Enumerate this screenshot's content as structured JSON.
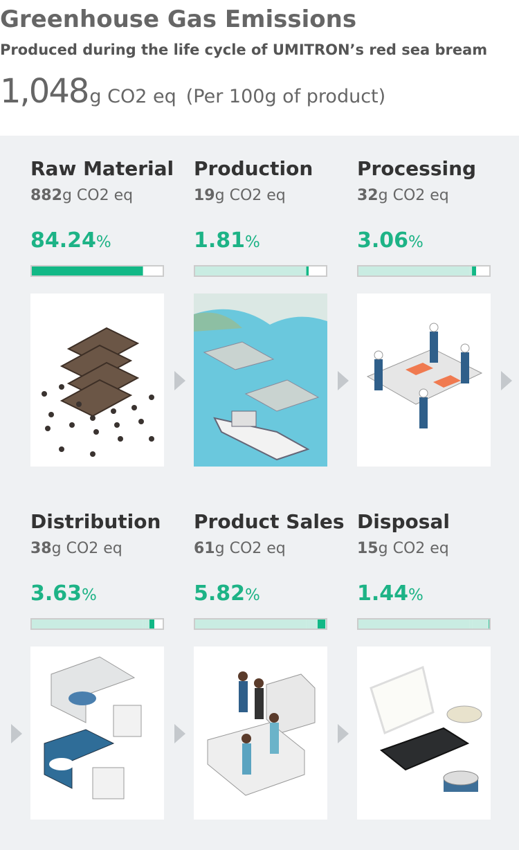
{
  "header": {
    "title": "Greenhouse Gas Emissions",
    "subtitle": "Produced during the life cycle of UMITRON’s red sea bream",
    "total": "1,048",
    "total_unit": "g CO2 eq",
    "note": "(Per 100g of product)"
  },
  "stage_unit": "g CO2 eq",
  "percent_sign": "%",
  "stages": [
    {
      "name": "Raw Material",
      "amount": 882,
      "percent": 84.24
    },
    {
      "name": "Production",
      "amount": 19,
      "percent": 1.81
    },
    {
      "name": "Processing",
      "amount": 32,
      "percent": 3.06
    },
    {
      "name": "Distribution",
      "amount": 38,
      "percent": 3.63
    },
    {
      "name": "Product Sales",
      "amount": 61,
      "percent": 5.82
    },
    {
      "name": "Disposal",
      "amount": 15,
      "percent": 1.44
    }
  ]
}
